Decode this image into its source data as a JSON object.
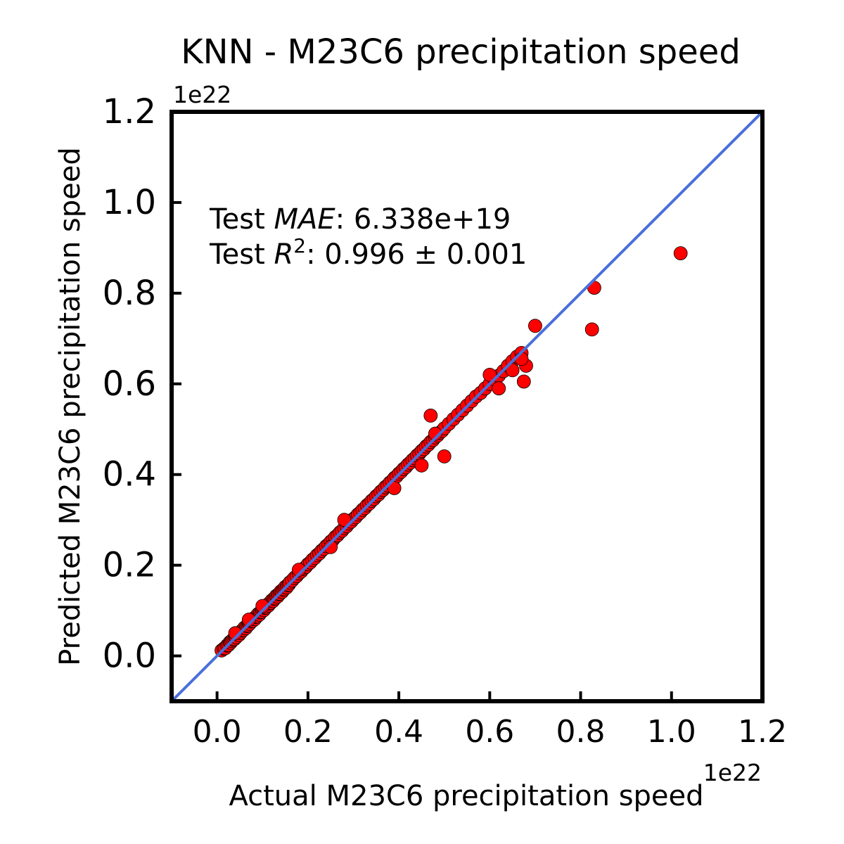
{
  "chart_data": {
    "type": "scatter",
    "title": "KNN - M23C6 precipitation speed",
    "xlabel": "Actual M23C6 precipitation speed",
    "ylabel": "Predicted M23C6 precipitation speed",
    "x_offset_label": "1e22",
    "y_offset_label": "1e22",
    "xlim": [
      -0.1,
      1.2
    ],
    "ylim": [
      -0.1,
      1.2
    ],
    "x_ticks": [
      "0.0",
      "0.2",
      "0.4",
      "0.6",
      "0.8",
      "1.0",
      "1.2"
    ],
    "y_ticks": [
      "0.0",
      "0.2",
      "0.4",
      "0.6",
      "0.8",
      "1.0",
      "1.2"
    ],
    "x_tick_values": [
      0.0,
      0.2,
      0.4,
      0.6,
      0.8,
      1.0,
      1.2
    ],
    "y_tick_values": [
      0.0,
      0.2,
      0.4,
      0.6,
      0.8,
      1.0,
      1.2
    ],
    "grid": false,
    "annotation": {
      "mae_prefix": "Test ",
      "mae_symbol": "MAE",
      "mae_value": ": 6.338e+19",
      "r2_prefix": "Test ",
      "r2_symbol": "R",
      "r2_exponent": "2",
      "r2_value": ": 0.996 ± 0.001"
    },
    "identity_line_color": "#4a6fdc",
    "marker_color": "#ff0000",
    "marker_edge_color": "#000000",
    "series": [
      {
        "x": [
          0.01,
          0.015,
          0.018,
          0.022,
          0.025,
          0.028,
          0.03,
          0.032,
          0.035,
          0.038,
          0.04,
          0.042,
          0.045,
          0.048,
          0.05,
          0.052,
          0.055,
          0.058,
          0.06,
          0.063,
          0.065,
          0.068,
          0.07,
          0.072,
          0.075,
          0.078,
          0.08,
          0.083,
          0.085,
          0.088,
          0.09,
          0.093,
          0.095,
          0.098,
          0.1,
          0.103,
          0.105,
          0.108,
          0.11,
          0.113,
          0.115,
          0.118,
          0.12,
          0.123,
          0.125,
          0.128,
          0.13,
          0.133,
          0.135,
          0.138,
          0.14,
          0.143,
          0.145,
          0.148,
          0.15,
          0.153,
          0.155,
          0.158,
          0.16,
          0.165,
          0.17,
          0.175,
          0.18,
          0.185,
          0.19,
          0.195,
          0.2,
          0.205,
          0.21,
          0.215,
          0.22,
          0.225,
          0.23,
          0.235,
          0.24,
          0.245,
          0.25,
          0.255,
          0.26,
          0.265,
          0.27,
          0.275,
          0.28,
          0.285,
          0.29,
          0.295,
          0.3,
          0.305,
          0.31,
          0.315,
          0.32,
          0.325,
          0.33,
          0.335,
          0.34,
          0.345,
          0.35,
          0.355,
          0.36,
          0.365,
          0.37,
          0.375,
          0.38,
          0.385,
          0.39,
          0.395,
          0.4,
          0.405,
          0.41,
          0.415,
          0.42,
          0.425,
          0.43,
          0.435,
          0.44,
          0.445,
          0.45,
          0.455,
          0.46,
          0.465,
          0.47,
          0.475,
          0.48,
          0.485,
          0.49,
          0.495,
          0.5,
          0.51,
          0.52,
          0.53,
          0.54,
          0.55,
          0.56,
          0.57,
          0.58,
          0.59,
          0.6,
          0.61,
          0.62,
          0.63,
          0.64,
          0.65,
          0.66,
          0.67,
          0.675,
          0.68,
          0.7,
          0.825,
          0.83,
          1.02,
          0.47,
          0.5,
          0.48,
          0.45,
          0.39,
          0.28,
          0.25,
          0.18,
          0.1,
          0.07,
          0.04,
          0.6,
          0.62,
          0.65,
          0.67
        ],
        "y": [
          0.012,
          0.016,
          0.017,
          0.023,
          0.024,
          0.03,
          0.029,
          0.033,
          0.036,
          0.037,
          0.042,
          0.041,
          0.047,
          0.046,
          0.052,
          0.051,
          0.056,
          0.057,
          0.062,
          0.061,
          0.066,
          0.067,
          0.072,
          0.071,
          0.076,
          0.077,
          0.082,
          0.081,
          0.086,
          0.087,
          0.092,
          0.091,
          0.096,
          0.097,
          0.102,
          0.101,
          0.106,
          0.107,
          0.112,
          0.111,
          0.116,
          0.117,
          0.122,
          0.121,
          0.126,
          0.127,
          0.132,
          0.131,
          0.136,
          0.137,
          0.142,
          0.141,
          0.146,
          0.147,
          0.152,
          0.151,
          0.156,
          0.157,
          0.162,
          0.166,
          0.172,
          0.176,
          0.182,
          0.186,
          0.192,
          0.196,
          0.202,
          0.206,
          0.212,
          0.216,
          0.222,
          0.226,
          0.232,
          0.236,
          0.242,
          0.246,
          0.252,
          0.256,
          0.262,
          0.266,
          0.272,
          0.276,
          0.282,
          0.286,
          0.292,
          0.296,
          0.302,
          0.306,
          0.312,
          0.316,
          0.322,
          0.326,
          0.332,
          0.336,
          0.342,
          0.346,
          0.352,
          0.356,
          0.362,
          0.366,
          0.372,
          0.376,
          0.382,
          0.386,
          0.392,
          0.396,
          0.402,
          0.406,
          0.412,
          0.416,
          0.422,
          0.426,
          0.432,
          0.436,
          0.442,
          0.446,
          0.452,
          0.456,
          0.462,
          0.466,
          0.472,
          0.476,
          0.482,
          0.486,
          0.492,
          0.496,
          0.502,
          0.512,
          0.522,
          0.532,
          0.542,
          0.552,
          0.562,
          0.572,
          0.58,
          0.59,
          0.6,
          0.61,
          0.618,
          0.628,
          0.64,
          0.65,
          0.66,
          0.668,
          0.605,
          0.64,
          0.728,
          0.72,
          0.812,
          0.888,
          0.53,
          0.44,
          0.49,
          0.42,
          0.37,
          0.3,
          0.24,
          0.19,
          0.11,
          0.08,
          0.05,
          0.62,
          0.59,
          0.63,
          0.655
        ]
      }
    ]
  }
}
